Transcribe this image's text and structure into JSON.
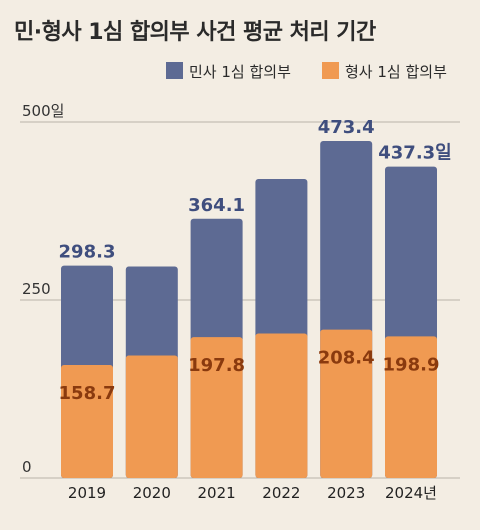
{
  "chart_data": {
    "type": "bar",
    "title": "민·형사 1심 합의부 사건 평균 처리 기간",
    "categories": [
      "2019",
      "2020",
      "2021",
      "2022",
      "2023",
      "2024년"
    ],
    "series": [
      {
        "name": "민사 1심 합의부",
        "color": "#5d6a93",
        "values": [
          298.3,
          297.0,
          364.1,
          420.0,
          473.4,
          437.3
        ],
        "labels": [
          "298.3",
          "",
          "364.1",
          "",
          "473.4",
          "437.3일"
        ]
      },
      {
        "name": "형사 1심 합의부",
        "color": "#f09a52",
        "values": [
          158.7,
          172.0,
          197.8,
          203.0,
          208.4,
          198.9
        ],
        "labels": [
          "158.7",
          "",
          "197.8",
          "",
          "208.4",
          "198.9"
        ]
      }
    ],
    "yticks": [
      {
        "value": 0,
        "label": "0"
      },
      {
        "value": 250,
        "label": "250"
      },
      {
        "value": 500,
        "label": "500일"
      }
    ],
    "ylim": [
      0,
      500
    ],
    "grid": true,
    "legend": "top-right",
    "overlapping_bars": true
  }
}
